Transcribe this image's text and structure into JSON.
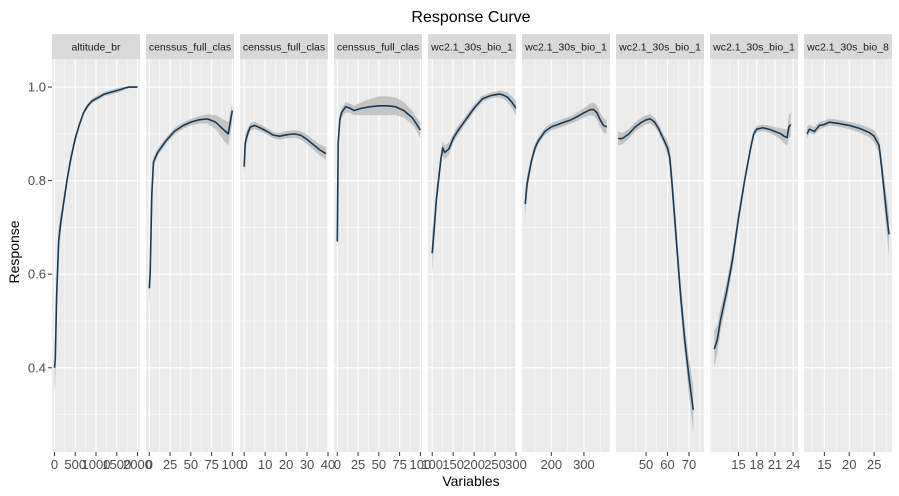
{
  "chart_data": {
    "type": "line",
    "title": "Response Curve",
    "xlabel": "Variables",
    "ylabel": "Response",
    "ylim": [
      0.22,
      1.06
    ],
    "yticks": [
      0.4,
      0.6,
      0.8,
      1.0
    ],
    "ytick_labels": [
      "0.4",
      "0.6",
      "0.8",
      "1.0"
    ],
    "grid": true,
    "colors": {
      "panel_bg": "#ebebeb",
      "strip_bg": "#d9d9d9",
      "line": "#133b5c",
      "ribbon": "#b5b5b5",
      "grid": "#ffffff"
    },
    "panels": [
      {
        "name": "altitude_br",
        "xlim": [
          -60,
          2060
        ],
        "xticks": [
          0,
          500,
          1000,
          1500,
          2000
        ],
        "xtick_labels": [
          "0",
          "500",
          "1000",
          "1500",
          "2000"
        ],
        "x": [
          0,
          20,
          50,
          100,
          150,
          200,
          300,
          400,
          500,
          600,
          700,
          800,
          900,
          1000,
          1200,
          1400,
          1600,
          1700,
          1800,
          1900,
          2000
        ],
        "y": [
          0.4,
          0.42,
          0.55,
          0.67,
          0.71,
          0.74,
          0.8,
          0.85,
          0.89,
          0.92,
          0.945,
          0.96,
          0.97,
          0.975,
          0.985,
          0.99,
          0.995,
          0.998,
          1.0,
          1.0,
          1.0
        ],
        "lower": [
          0.35,
          0.37,
          0.51,
          0.64,
          0.69,
          0.725,
          0.79,
          0.84,
          0.88,
          0.915,
          0.94,
          0.955,
          0.965,
          0.97,
          0.98,
          0.985,
          0.99,
          0.995,
          0.998,
          0.998,
          0.998
        ],
        "upper": [
          0.45,
          0.47,
          0.59,
          0.7,
          0.73,
          0.755,
          0.81,
          0.86,
          0.9,
          0.925,
          0.95,
          0.965,
          0.975,
          0.98,
          0.99,
          0.995,
          1.0,
          1.0,
          1.002,
          1.002,
          1.002
        ]
      },
      {
        "name": "censsus_full_clas",
        "xlim": [
          -4,
          102
        ],
        "xticks": [
          0,
          25,
          50,
          75,
          100
        ],
        "xtick_labels": [
          "0",
          "25",
          "50",
          "75",
          "100"
        ],
        "x": [
          0,
          1,
          3,
          5,
          10,
          20,
          30,
          40,
          50,
          60,
          70,
          80,
          90,
          95,
          100
        ],
        "y": [
          0.57,
          0.6,
          0.77,
          0.84,
          0.86,
          0.885,
          0.905,
          0.917,
          0.925,
          0.93,
          0.932,
          0.925,
          0.908,
          0.9,
          0.95
        ],
        "lower": [
          0.53,
          0.57,
          0.75,
          0.83,
          0.852,
          0.878,
          0.898,
          0.91,
          0.918,
          0.922,
          0.922,
          0.91,
          0.885,
          0.875,
          0.925
        ],
        "upper": [
          0.61,
          0.63,
          0.79,
          0.85,
          0.868,
          0.892,
          0.912,
          0.924,
          0.932,
          0.938,
          0.942,
          0.94,
          0.93,
          0.925,
          0.965
        ]
      },
      {
        "name": "censsus_full_clas",
        "xlim": [
          -2,
          40
        ],
        "xticks": [
          0,
          10,
          20,
          30,
          40
        ],
        "xtick_labels": [
          "0",
          "10",
          "20",
          "30",
          "40"
        ],
        "x": [
          0,
          0.5,
          1,
          2,
          3,
          5,
          8,
          11,
          14,
          17,
          20,
          24,
          27,
          30,
          33,
          36,
          39
        ],
        "y": [
          0.83,
          0.88,
          0.89,
          0.905,
          0.915,
          0.918,
          0.912,
          0.905,
          0.897,
          0.895,
          0.898,
          0.9,
          0.897,
          0.888,
          0.877,
          0.866,
          0.858
        ],
        "lower": [
          0.8,
          0.86,
          0.875,
          0.895,
          0.907,
          0.91,
          0.905,
          0.898,
          0.89,
          0.888,
          0.89,
          0.892,
          0.888,
          0.878,
          0.866,
          0.854,
          0.844
        ],
        "upper": [
          0.86,
          0.9,
          0.905,
          0.915,
          0.923,
          0.926,
          0.92,
          0.912,
          0.904,
          0.902,
          0.906,
          0.908,
          0.906,
          0.898,
          0.888,
          0.878,
          0.872
        ]
      },
      {
        "name": "censsus_full_clas",
        "xlim": [
          -4,
          102
        ],
        "xticks": [
          0,
          25,
          50,
          75,
          100
        ],
        "xtick_labels": [
          "0",
          "25",
          "50",
          "75",
          "100"
        ],
        "x": [
          0,
          1,
          3,
          5,
          10,
          15,
          20,
          30,
          40,
          50,
          60,
          70,
          80,
          90,
          95,
          100
        ],
        "y": [
          0.67,
          0.88,
          0.93,
          0.945,
          0.958,
          0.955,
          0.95,
          0.955,
          0.958,
          0.96,
          0.96,
          0.958,
          0.95,
          0.935,
          0.922,
          0.908
        ],
        "lower": [
          0.64,
          0.86,
          0.92,
          0.935,
          0.945,
          0.945,
          0.94,
          0.94,
          0.94,
          0.94,
          0.94,
          0.94,
          0.935,
          0.92,
          0.908,
          0.89
        ],
        "upper": [
          0.7,
          0.9,
          0.94,
          0.955,
          0.968,
          0.965,
          0.96,
          0.968,
          0.975,
          0.98,
          0.98,
          0.978,
          0.968,
          0.95,
          0.936,
          0.925
        ]
      },
      {
        "name": "wc2.1_30s_bio_1",
        "xlim": [
          90,
          300
        ],
        "xticks": [
          100,
          150,
          200,
          250,
          300
        ],
        "xtick_labels": [
          "100",
          "150",
          "200",
          "250",
          "300"
        ],
        "x": [
          100,
          105,
          110,
          120,
          125,
          130,
          140,
          150,
          160,
          180,
          200,
          220,
          240,
          260,
          270,
          280,
          290,
          300
        ],
        "y": [
          0.645,
          0.7,
          0.76,
          0.84,
          0.87,
          0.86,
          0.868,
          0.89,
          0.905,
          0.93,
          0.955,
          0.975,
          0.982,
          0.985,
          0.983,
          0.978,
          0.968,
          0.955
        ],
        "lower": [
          0.6,
          0.67,
          0.74,
          0.825,
          0.855,
          0.845,
          0.855,
          0.88,
          0.895,
          0.922,
          0.947,
          0.968,
          0.976,
          0.978,
          0.975,
          0.968,
          0.955,
          0.94
        ],
        "upper": [
          0.69,
          0.73,
          0.78,
          0.855,
          0.885,
          0.875,
          0.881,
          0.9,
          0.915,
          0.938,
          0.963,
          0.982,
          0.988,
          0.992,
          0.991,
          0.988,
          0.981,
          0.97
        ]
      },
      {
        "name": "wc2.1_30s_bio_1",
        "xlim": [
          110,
          380
        ],
        "xticks": [
          200,
          300
        ],
        "xtick_labels": [
          "200",
          "300"
        ],
        "x": [
          120,
          125,
          130,
          140,
          150,
          160,
          180,
          200,
          220,
          240,
          260,
          280,
          300,
          320,
          330,
          340,
          350,
          360,
          370
        ],
        "y": [
          0.75,
          0.79,
          0.81,
          0.845,
          0.87,
          0.885,
          0.905,
          0.915,
          0.92,
          0.925,
          0.93,
          0.937,
          0.945,
          0.952,
          0.952,
          0.945,
          0.93,
          0.918,
          0.915
        ],
        "lower": [
          0.72,
          0.77,
          0.795,
          0.835,
          0.86,
          0.877,
          0.897,
          0.907,
          0.912,
          0.917,
          0.922,
          0.928,
          0.935,
          0.94,
          0.938,
          0.93,
          0.915,
          0.902,
          0.9
        ],
        "upper": [
          0.78,
          0.81,
          0.825,
          0.855,
          0.88,
          0.893,
          0.913,
          0.923,
          0.928,
          0.933,
          0.938,
          0.946,
          0.955,
          0.965,
          0.967,
          0.96,
          0.945,
          0.934,
          0.93
        ]
      },
      {
        "name": "wc2.1_30s_bio_1",
        "xlim": [
          36,
          77
        ],
        "xticks": [
          50,
          60,
          70
        ],
        "xtick_labels": [
          "50",
          "60",
          "70"
        ],
        "x": [
          37,
          39,
          42,
          45,
          48,
          50,
          52,
          54,
          56,
          58,
          60,
          61,
          62,
          64,
          66,
          68,
          70,
          72
        ],
        "y": [
          0.89,
          0.89,
          0.9,
          0.915,
          0.925,
          0.93,
          0.932,
          0.925,
          0.91,
          0.89,
          0.87,
          0.85,
          0.8,
          0.68,
          0.56,
          0.46,
          0.38,
          0.31
        ],
        "lower": [
          0.875,
          0.878,
          0.89,
          0.905,
          0.915,
          0.92,
          0.922,
          0.915,
          0.9,
          0.88,
          0.855,
          0.83,
          0.77,
          0.65,
          0.53,
          0.43,
          0.34,
          0.26
        ],
        "upper": [
          0.905,
          0.902,
          0.91,
          0.925,
          0.935,
          0.94,
          0.942,
          0.935,
          0.92,
          0.9,
          0.885,
          0.87,
          0.83,
          0.71,
          0.59,
          0.49,
          0.42,
          0.36
        ]
      },
      {
        "name": "wc2.1_30s_bio_1",
        "xlim": [
          10.3,
          24.8
        ],
        "xticks": [
          15,
          18,
          21,
          24
        ],
        "xtick_labels": [
          "15",
          "18",
          "21",
          "24"
        ],
        "x": [
          11,
          11.5,
          12,
          13,
          14,
          15,
          16,
          17,
          17.5,
          18,
          19,
          20,
          21,
          22,
          22.5,
          23,
          23.3,
          23.6
        ],
        "y": [
          0.44,
          0.46,
          0.5,
          0.56,
          0.63,
          0.72,
          0.8,
          0.87,
          0.9,
          0.91,
          0.913,
          0.91,
          0.905,
          0.9,
          0.895,
          0.892,
          0.915,
          0.92
        ],
        "lower": [
          0.4,
          0.43,
          0.475,
          0.54,
          0.61,
          0.705,
          0.79,
          0.86,
          0.893,
          0.903,
          0.906,
          0.902,
          0.896,
          0.888,
          0.88,
          0.875,
          0.89,
          0.895
        ],
        "upper": [
          0.48,
          0.49,
          0.525,
          0.58,
          0.65,
          0.735,
          0.81,
          0.88,
          0.907,
          0.917,
          0.92,
          0.918,
          0.914,
          0.912,
          0.91,
          0.909,
          0.94,
          0.945
        ]
      },
      {
        "name": "wc2.1_30s_bio_8",
        "xlim": [
          10.9,
          28.6
        ],
        "xticks": [
          15,
          20,
          25
        ],
        "xtick_labels": [
          "15",
          "20",
          "25"
        ],
        "x": [
          11.5,
          12,
          13,
          14,
          15,
          16,
          18,
          20,
          22,
          24,
          25,
          26,
          26.5,
          27,
          27.5,
          28
        ],
        "y": [
          0.9,
          0.91,
          0.905,
          0.918,
          0.92,
          0.925,
          0.922,
          0.918,
          0.912,
          0.903,
          0.895,
          0.875,
          0.83,
          0.78,
          0.73,
          0.685
        ],
        "lower": [
          0.89,
          0.902,
          0.898,
          0.91,
          0.913,
          0.918,
          0.915,
          0.91,
          0.903,
          0.893,
          0.882,
          0.86,
          0.81,
          0.75,
          0.69,
          0.64
        ],
        "upper": [
          0.915,
          0.92,
          0.914,
          0.926,
          0.928,
          0.933,
          0.93,
          0.926,
          0.921,
          0.913,
          0.908,
          0.89,
          0.85,
          0.81,
          0.77,
          0.725
        ]
      }
    ]
  }
}
